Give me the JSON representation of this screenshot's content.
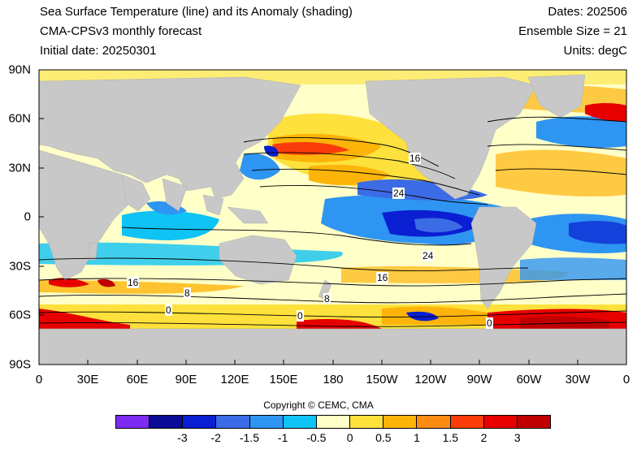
{
  "header": {
    "title": "Sea Surface Temperature (line) and its Anomaly (shading)",
    "model": "CMA-CPSv3 monthly forecast",
    "initial_date": "Initial date: 20250301",
    "dates": "Dates: 202506",
    "ensemble": "Ensemble Size = 21",
    "units": "Units: degC"
  },
  "axes": {
    "y_ticks": [
      "90N",
      "60N",
      "30N",
      "0",
      "30S",
      "60S",
      "90S"
    ],
    "x_ticks": [
      "0",
      "30E",
      "60E",
      "90E",
      "120E",
      "150E",
      "180",
      "150W",
      "120W",
      "90W",
      "60W",
      "30W",
      "0"
    ]
  },
  "contour_labels": [
    "16",
    "24",
    "24",
    "16",
    "8",
    "8",
    "0",
    "0",
    "0",
    "16"
  ],
  "colorbar": {
    "colors": [
      "#7b2cf0",
      "#0a0a96",
      "#0a1ed2",
      "#3c6be6",
      "#2e95f2",
      "#0fc3f5",
      "#ffffc8",
      "#fee13c",
      "#fdb40a",
      "#fd8c14",
      "#fa3c0a",
      "#e60000",
      "#c00000"
    ],
    "labels": [
      "-3",
      "-2",
      "-1.5",
      "-1",
      "-0.5",
      "0",
      "0.5",
      "1",
      "1.5",
      "2",
      "3"
    ]
  },
  "copyright": "Copyright © CEMC, CMA",
  "colors": {
    "land": "#c8c8c8",
    "missing": "#ffffff"
  }
}
